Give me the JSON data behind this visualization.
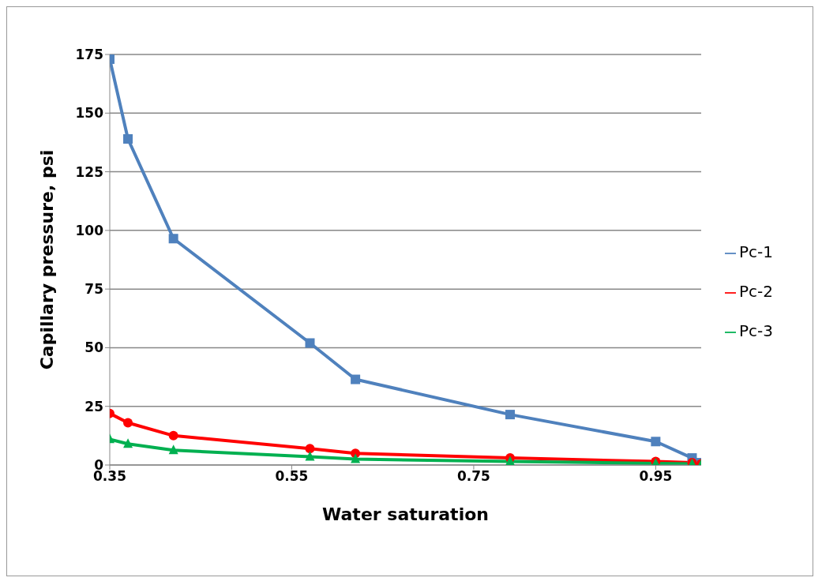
{
  "chart_data": {
    "type": "line",
    "xlabel": "Water saturation",
    "ylabel": "Capillary pressure, psi",
    "x": [
      0.35,
      0.37,
      0.42,
      0.57,
      0.62,
      0.79,
      0.95,
      0.99,
      1.0
    ],
    "series": [
      {
        "name": "Pc-1",
        "color": "#4f81bd",
        "marker": "square",
        "values": [
          173,
          139,
          96.5,
          52,
          36.5,
          21.5,
          10,
          3,
          1
        ]
      },
      {
        "name": "Pc-2",
        "color": "#ff0000",
        "marker": "circle",
        "values": [
          22,
          18,
          12.5,
          7,
          5,
          3,
          1.5,
          1,
          0.5
        ]
      },
      {
        "name": "Pc-3",
        "color": "#00b050",
        "marker": "triangle",
        "values": [
          11,
          9,
          6.3,
          3.5,
          2.5,
          1.5,
          0.7,
          0.5,
          0.2
        ]
      }
    ],
    "xlim": [
      0.35,
      1.0
    ],
    "xticks": [
      0.35,
      0.55,
      0.75,
      0.95
    ],
    "ylim": [
      0,
      175
    ],
    "yticks": [
      0,
      25,
      50,
      75,
      100,
      125,
      150,
      175
    ],
    "grid": "y",
    "legend": "right"
  }
}
